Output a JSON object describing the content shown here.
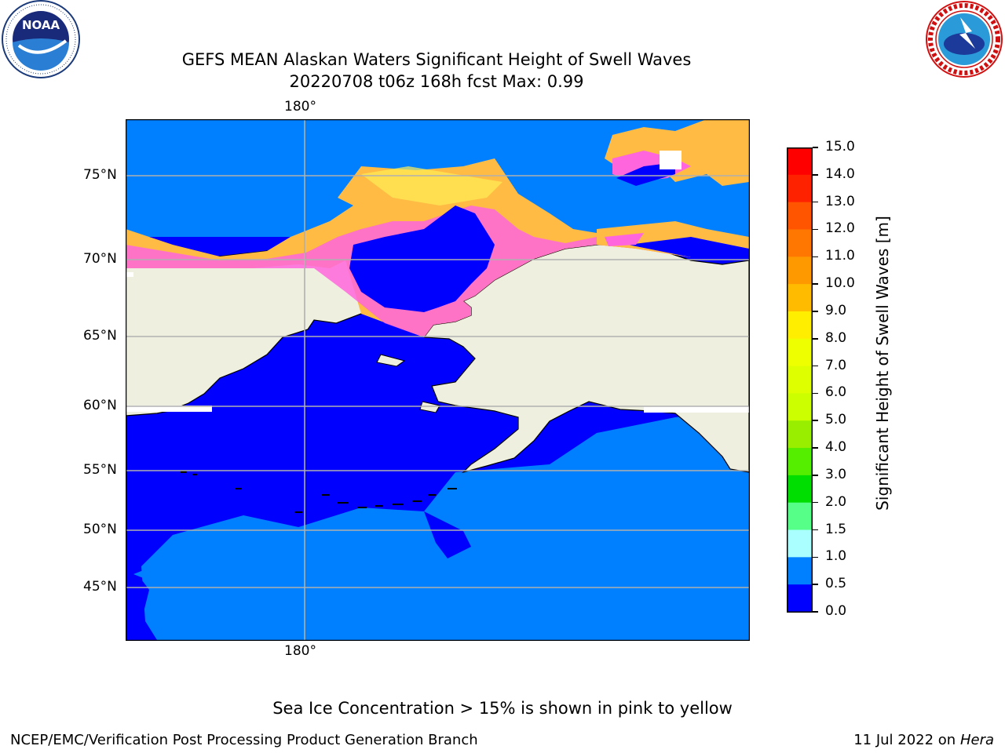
{
  "header": {
    "title_line1": "GEFS MEAN Alaskan Waters Significant Height of Swell Waves",
    "title_line2": "20220708 t06z 168h fcst   Max: 0.99"
  },
  "logos": {
    "left": {
      "name": "noaa-logo",
      "text": "NOAA",
      "ring_text": "NATIONAL OCEANIC AND ATMOSPHERIC ADMINISTRATION · U.S. DEPARTMENT OF COMMERCE"
    },
    "right": {
      "name": "nws-logo",
      "ring_text": "NATIONAL WEATHER SERVICE"
    }
  },
  "map": {
    "lon_label_top": "180°",
    "lon_label_bottom": "180°",
    "lat_labels": [
      "75°N",
      "70°N",
      "65°N",
      "60°N",
      "55°N",
      "50°N",
      "45°N"
    ],
    "colors": {
      "land": "#efefdf",
      "deep_blue": "#0000ff",
      "med_blue": "#0080ff",
      "ice_pink": "#ff66dd",
      "ice_orange": "#ffbb44",
      "ice_yellow": "#ffee55",
      "grid": "#b0b0b0"
    }
  },
  "colorbar": {
    "label": "Significant Height of Swell Waves [m]",
    "ticks": [
      "15.0",
      "14.0",
      "13.0",
      "12.0",
      "11.0",
      "10.0",
      "9.0",
      "8.0",
      "7.0",
      "6.0",
      "5.0",
      "4.0",
      "3.0",
      "2.0",
      "1.5",
      "1.0",
      "0.5",
      "0.0"
    ],
    "colors_top_to_bottom": [
      "#ff0000",
      "#ff2200",
      "#ff5500",
      "#ff7700",
      "#ff9900",
      "#ffbb00",
      "#ffee00",
      "#eeff00",
      "#ddff00",
      "#ccff00",
      "#99ee00",
      "#55ee00",
      "#00dd00",
      "#55ff88",
      "#aaffff",
      "#55ffff",
      "#00ffff",
      "#0080ff",
      "#0000ff"
    ]
  },
  "notes": {
    "ice_note": "Sea Ice Concentration > 15% is shown in pink to yellow"
  },
  "footer": {
    "left": "NCEP/EMC/Verification Post Processing Product Generation Branch",
    "right_prefix": "11 Jul 2022 on ",
    "right_host": "Hera"
  }
}
